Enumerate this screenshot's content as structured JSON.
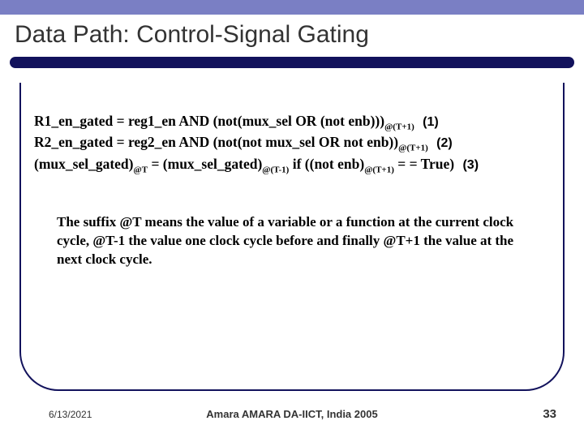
{
  "colors": {
    "top_bar": "#7a7fc4",
    "divider": "#12125c",
    "frame_border": "#12125c",
    "text": "#000000",
    "footer_text": "#333333",
    "background": "#ffffff"
  },
  "title": "Data Path: Control-Signal Gating",
  "equations": {
    "line1_main": "R1_en_gated = reg1_en AND (not(mux_sel OR (not enb)))",
    "line1_sub": "@(T+1)",
    "line1_tag": "(1)",
    "line2_main": "R2_en_gated = reg2_en AND (not(not mux_sel OR not enb))",
    "line2_sub": "@(T+1)",
    "line2_tag": "(2)",
    "line3_a": "(mux_sel_gated)",
    "line3_a_sub": "@T",
    "line3_b": " = (mux_sel_gated)",
    "line3_b_sub": "@(T-1)",
    "line3_c": " if ((not enb)",
    "line3_c_sub": "@(T+1)",
    "line3_d": " = = True)",
    "line3_tag": "(3)"
  },
  "explanation": "The suffix @T means the value of a variable or a function at the current clock cycle, @T-1 the value one clock cycle before and finally @T+1 the value at the next clock cycle.",
  "footer": {
    "date": "6/13/2021",
    "center": "Amara AMARA DA-IICT, India 2005",
    "page": "33"
  }
}
